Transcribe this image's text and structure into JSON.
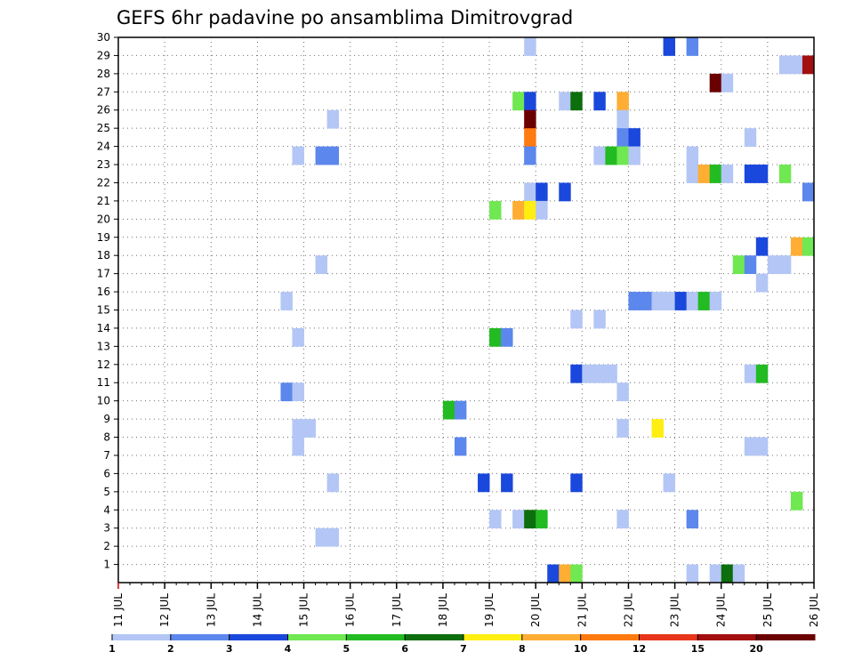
{
  "chart_data": {
    "type": "heatmap",
    "title": "GEFS 6hr padavine po ansamblima Dimitrovgrad",
    "x_tick_labels": [
      "11 JUL",
      "12 JUL",
      "13 JUL",
      "14 JUL",
      "15 JUL",
      "16 JUL",
      "17 JUL",
      "18 JUL",
      "19 JUL",
      "20 JUL",
      "21 JUL",
      "22 JUL",
      "23 JUL",
      "24 JUL",
      "25 JUL",
      "26 JUL"
    ],
    "y_tick_labels": [
      "1",
      "2",
      "3",
      "4",
      "5",
      "6",
      "7",
      "8",
      "9",
      "10",
      "11",
      "12",
      "13",
      "14",
      "15",
      "16",
      "17",
      "18",
      "19",
      "20",
      "21",
      "22",
      "23",
      "24",
      "25",
      "26",
      "27",
      "28",
      "29",
      "30"
    ],
    "xlim": [
      0,
      60
    ],
    "ylim": [
      0,
      30
    ],
    "grid": true,
    "x_step_note": "6-hour steps from 11 JUL",
    "legend_position": "bottom",
    "legend_labels": [
      "1",
      "2",
      "3",
      "4",
      "5",
      "6",
      "7",
      "8",
      "10",
      "12",
      "15",
      "20"
    ],
    "legend_colors": [
      "#b3c6f5",
      "#5c87ec",
      "#1a48dc",
      "#6fe851",
      "#22bb22",
      "#0c6e0c",
      "#ffee11",
      "#ffad33",
      "#ff7a0f",
      "#e8361a",
      "#a30e0e",
      "#6b0000"
    ],
    "cells": [
      {
        "x": 35,
        "y": 29,
        "v": 1
      },
      {
        "x": 47,
        "y": 29,
        "v": 3
      },
      {
        "x": 49,
        "y": 29,
        "v": 2
      },
      {
        "x": 57,
        "y": 28,
        "v": 1
      },
      {
        "x": 58,
        "y": 28,
        "v": 1
      },
      {
        "x": 59,
        "y": 28,
        "v": 15
      },
      {
        "x": 51,
        "y": 27,
        "v": 20
      },
      {
        "x": 52,
        "y": 27,
        "v": 1
      },
      {
        "x": 34,
        "y": 26,
        "v": 4
      },
      {
        "x": 35,
        "y": 26,
        "v": 3
      },
      {
        "x": 38,
        "y": 26,
        "v": 1
      },
      {
        "x": 39,
        "y": 26,
        "v": 6
      },
      {
        "x": 41,
        "y": 26,
        "v": 3
      },
      {
        "x": 43,
        "y": 26,
        "v": 8
      },
      {
        "x": 18,
        "y": 25,
        "v": 1
      },
      {
        "x": 35,
        "y": 25,
        "v": 20
      },
      {
        "x": 43,
        "y": 25,
        "v": 1
      },
      {
        "x": 35,
        "y": 24,
        "v": 10
      },
      {
        "x": 43,
        "y": 24,
        "v": 2
      },
      {
        "x": 44,
        "y": 24,
        "v": 3
      },
      {
        "x": 54,
        "y": 24,
        "v": 1
      },
      {
        "x": 15,
        "y": 23,
        "v": 1
      },
      {
        "x": 17,
        "y": 23,
        "v": 2
      },
      {
        "x": 18,
        "y": 23,
        "v": 2
      },
      {
        "x": 35,
        "y": 23,
        "v": 2
      },
      {
        "x": 41,
        "y": 23,
        "v": 1
      },
      {
        "x": 42,
        "y": 23,
        "v": 5
      },
      {
        "x": 43,
        "y": 23,
        "v": 4
      },
      {
        "x": 44,
        "y": 23,
        "v": 1
      },
      {
        "x": 49,
        "y": 23,
        "v": 1
      },
      {
        "x": 49,
        "y": 22,
        "v": 1
      },
      {
        "x": 50,
        "y": 22,
        "v": 8
      },
      {
        "x": 51,
        "y": 22,
        "v": 5
      },
      {
        "x": 52,
        "y": 22,
        "v": 1
      },
      {
        "x": 54,
        "y": 22,
        "v": 3
      },
      {
        "x": 55,
        "y": 22,
        "v": 3
      },
      {
        "x": 57,
        "y": 22,
        "v": 4
      },
      {
        "x": 35,
        "y": 21,
        "v": 1
      },
      {
        "x": 36,
        "y": 21,
        "v": 3
      },
      {
        "x": 38,
        "y": 21,
        "v": 3
      },
      {
        "x": 59,
        "y": 21,
        "v": 2
      },
      {
        "x": 32,
        "y": 20,
        "v": 4
      },
      {
        "x": 34,
        "y": 20,
        "v": 8
      },
      {
        "x": 35,
        "y": 20,
        "v": 7
      },
      {
        "x": 36,
        "y": 20,
        "v": 1
      },
      {
        "x": 55,
        "y": 18,
        "v": 3
      },
      {
        "x": 58,
        "y": 18,
        "v": 8
      },
      {
        "x": 59,
        "y": 18,
        "v": 4
      },
      {
        "x": 17,
        "y": 17,
        "v": 1
      },
      {
        "x": 53,
        "y": 17,
        "v": 4
      },
      {
        "x": 54,
        "y": 17,
        "v": 2
      },
      {
        "x": 56,
        "y": 17,
        "v": 1
      },
      {
        "x": 57,
        "y": 17,
        "v": 1
      },
      {
        "x": 55,
        "y": 16,
        "v": 1
      },
      {
        "x": 14,
        "y": 15,
        "v": 1
      },
      {
        "x": 44,
        "y": 15,
        "v": 2
      },
      {
        "x": 45,
        "y": 15,
        "v": 2
      },
      {
        "x": 46,
        "y": 15,
        "v": 1
      },
      {
        "x": 47,
        "y": 15,
        "v": 1
      },
      {
        "x": 48,
        "y": 15,
        "v": 3
      },
      {
        "x": 49,
        "y": 15,
        "v": 1
      },
      {
        "x": 50,
        "y": 15,
        "v": 5
      },
      {
        "x": 51,
        "y": 15,
        "v": 1
      },
      {
        "x": 39,
        "y": 14,
        "v": 1
      },
      {
        "x": 41,
        "y": 14,
        "v": 1
      },
      {
        "x": 15,
        "y": 13,
        "v": 1
      },
      {
        "x": 32,
        "y": 13,
        "v": 5
      },
      {
        "x": 33,
        "y": 13,
        "v": 2
      },
      {
        "x": 39,
        "y": 11,
        "v": 3
      },
      {
        "x": 40,
        "y": 11,
        "v": 1
      },
      {
        "x": 41,
        "y": 11,
        "v": 1
      },
      {
        "x": 42,
        "y": 11,
        "v": 1
      },
      {
        "x": 54,
        "y": 11,
        "v": 1
      },
      {
        "x": 55,
        "y": 11,
        "v": 5
      },
      {
        "x": 14,
        "y": 10,
        "v": 2
      },
      {
        "x": 15,
        "y": 10,
        "v": 1
      },
      {
        "x": 43,
        "y": 10,
        "v": 1
      },
      {
        "x": 28,
        "y": 9,
        "v": 5
      },
      {
        "x": 29,
        "y": 9,
        "v": 2
      },
      {
        "x": 15,
        "y": 8,
        "v": 1
      },
      {
        "x": 16,
        "y": 8,
        "v": 1
      },
      {
        "x": 43,
        "y": 8,
        "v": 1
      },
      {
        "x": 46,
        "y": 8,
        "v": 7
      },
      {
        "x": 15,
        "y": 7,
        "v": 1
      },
      {
        "x": 29,
        "y": 7,
        "v": 2
      },
      {
        "x": 54,
        "y": 7,
        "v": 1
      },
      {
        "x": 55,
        "y": 7,
        "v": 1
      },
      {
        "x": 18,
        "y": 5,
        "v": 1
      },
      {
        "x": 31,
        "y": 5,
        "v": 3
      },
      {
        "x": 33,
        "y": 5,
        "v": 3
      },
      {
        "x": 39,
        "y": 5,
        "v": 3
      },
      {
        "x": 47,
        "y": 5,
        "v": 1
      },
      {
        "x": 58,
        "y": 4,
        "v": 4
      },
      {
        "x": 32,
        "y": 3,
        "v": 1
      },
      {
        "x": 34,
        "y": 3,
        "v": 1
      },
      {
        "x": 35,
        "y": 3,
        "v": 6
      },
      {
        "x": 36,
        "y": 3,
        "v": 5
      },
      {
        "x": 43,
        "y": 3,
        "v": 1
      },
      {
        "x": 49,
        "y": 3,
        "v": 2
      },
      {
        "x": 17,
        "y": 2,
        "v": 1
      },
      {
        "x": 18,
        "y": 2,
        "v": 1
      },
      {
        "x": 37,
        "y": 0,
        "v": 3
      },
      {
        "x": 38,
        "y": 0,
        "v": 8
      },
      {
        "x": 39,
        "y": 0,
        "v": 4
      },
      {
        "x": 49,
        "y": 0,
        "v": 1
      },
      {
        "x": 51,
        "y": 0,
        "v": 1
      },
      {
        "x": 52,
        "y": 0,
        "v": 6
      },
      {
        "x": 53,
        "y": 0,
        "v": 1
      }
    ]
  }
}
